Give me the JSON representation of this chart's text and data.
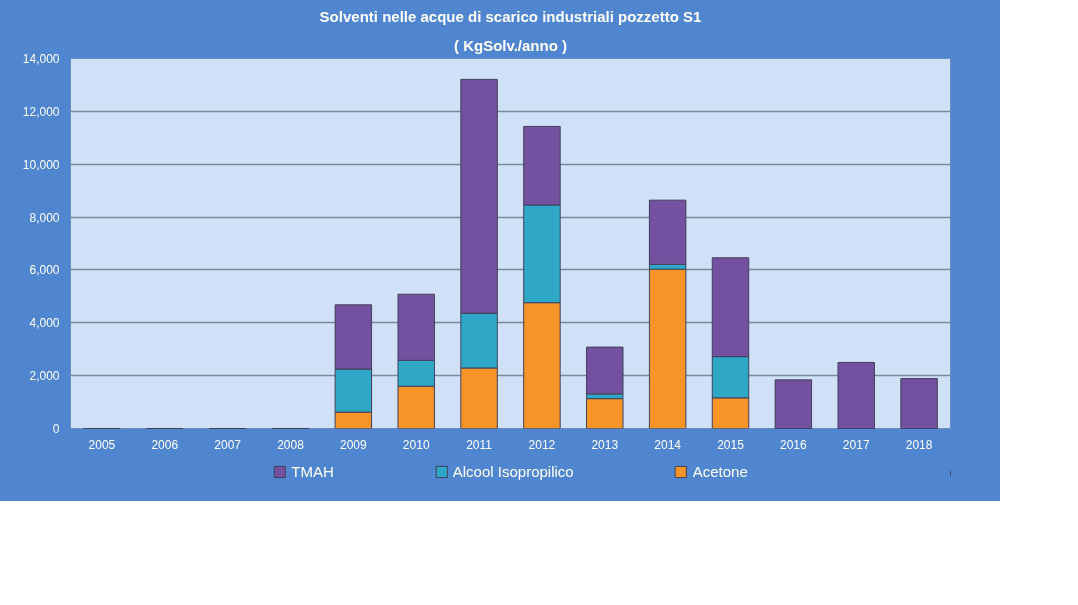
{
  "chart_data": {
    "type": "bar",
    "title": "Solventi nelle acque di scarico industriali pozzetto S1",
    "subtitle": "( KgSolv./anno )",
    "stacked": true,
    "categories": [
      "2005",
      "2006",
      "2007",
      "2008",
      "2009",
      "2010",
      "2011",
      "2012",
      "2013",
      "2014",
      "2015",
      "2016",
      "2017",
      "2018"
    ],
    "series": [
      {
        "name": "Acetone",
        "color": "#f79428",
        "values": [
          0,
          0,
          0,
          0,
          620,
          1600,
          2290,
          4760,
          1130,
          6030,
          1160,
          0,
          0,
          0
        ]
      },
      {
        "name": "Alcool Isopropilico",
        "color": "#2fa8c8",
        "values": [
          0,
          0,
          0,
          0,
          1630,
          980,
          2070,
          3700,
          180,
          180,
          1560,
          null,
          0,
          0
        ]
      },
      {
        "name": "TMAH",
        "color": "#7450a0",
        "values": [
          0,
          0,
          0,
          0,
          2430,
          2500,
          8850,
          2970,
          1770,
          2430,
          3740,
          1840,
          2500,
          1890
        ]
      }
    ],
    "ylim": [
      0,
      14000
    ],
    "yticks": [
      {
        "value": 0,
        "label": "0"
      },
      {
        "value": 2000,
        "label": "2,000"
      },
      {
        "value": 4000,
        "label": "4,000"
      },
      {
        "value": 6000,
        "label": "6,000"
      },
      {
        "value": 8000,
        "label": "8,000"
      },
      {
        "value": 10000,
        "label": "10,000"
      },
      {
        "value": 12000,
        "label": "12,000"
      },
      {
        "value": 14000,
        "label": "14,000"
      }
    ],
    "grid": "y",
    "legend": "bottom"
  }
}
